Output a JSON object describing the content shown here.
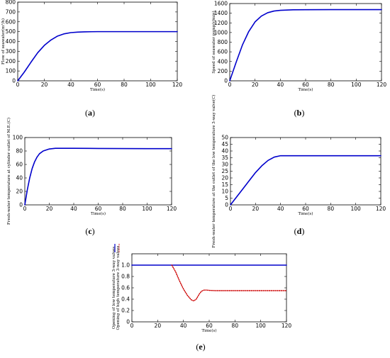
{
  "chart_data": [
    {
      "type": "line",
      "panel": "a",
      "caption": "(a)",
      "ylabel": "Flow of seawater(m³/h)",
      "xlabel": "Time(s)",
      "xlim": [
        0,
        120
      ],
      "ylim": [
        0,
        800
      ],
      "xticks": [
        0,
        20,
        40,
        60,
        80,
        100,
        120
      ],
      "yticks": [
        0,
        100,
        200,
        300,
        400,
        500,
        600,
        700,
        800
      ],
      "grid": false,
      "series": [
        {
          "color": "#0000cc",
          "style": "solid",
          "x": [
            0,
            5,
            10,
            15,
            20,
            25,
            30,
            35,
            40,
            45,
            50,
            55,
            60,
            65,
            70,
            80,
            100,
            120
          ],
          "values": [
            0,
            90,
            190,
            285,
            360,
            415,
            455,
            478,
            490,
            495,
            498,
            499,
            500,
            500,
            500,
            500,
            500,
            500
          ]
        }
      ]
    },
    {
      "type": "line",
      "panel": "b",
      "caption": "(b)",
      "ylabel": "Speed of seawater pump(r/min)",
      "xlabel": "Time(s)",
      "xlim": [
        0,
        120
      ],
      "ylim": [
        0,
        1600
      ],
      "xticks": [
        0,
        20,
        40,
        60,
        80,
        100,
        120
      ],
      "yticks": [
        0,
        200,
        400,
        600,
        800,
        1000,
        1200,
        1400,
        1600
      ],
      "grid": false,
      "series": [
        {
          "color": "#0000cc",
          "style": "solid",
          "x": [
            0,
            5,
            10,
            15,
            20,
            25,
            30,
            35,
            40,
            50,
            60,
            80,
            100,
            120
          ],
          "values": [
            0,
            380,
            740,
            1020,
            1220,
            1340,
            1410,
            1445,
            1460,
            1470,
            1472,
            1475,
            1475,
            1475
          ]
        }
      ]
    },
    {
      "type": "line",
      "panel": "c",
      "caption": "(c)",
      "ylabel": "Fresh-water temperature at cylinder outlet of M.E.(C)",
      "xlabel": "Time(s)",
      "xlim": [
        0,
        120
      ],
      "ylim": [
        0,
        100
      ],
      "xticks": [
        0,
        20,
        40,
        60,
        80,
        100,
        120
      ],
      "yticks": [
        0,
        20,
        40,
        60,
        80,
        100
      ],
      "grid": false,
      "series": [
        {
          "color": "#0000cc",
          "style": "solid",
          "x": [
            0,
            2,
            4,
            6,
            8,
            10,
            12,
            15,
            20,
            25,
            30,
            35,
            40,
            60,
            80,
            100,
            120
          ],
          "values": [
            0,
            22,
            40,
            54,
            64,
            71,
            76,
            80,
            83,
            84,
            84,
            84,
            84,
            83.8,
            83.6,
            83.5,
            83.5
          ]
        }
      ]
    },
    {
      "type": "line",
      "panel": "d",
      "caption": "(d)",
      "ylabel": "Fresh-water temperature at the outlet of the low temperature 3-way valve(C)",
      "xlabel": "Time(s)",
      "xlim": [
        0,
        120
      ],
      "ylim": [
        0,
        50
      ],
      "xticks": [
        0,
        20,
        40,
        60,
        80,
        100,
        120
      ],
      "yticks": [
        0,
        5,
        10,
        15,
        20,
        25,
        30,
        35,
        40,
        45,
        50
      ],
      "grid": false,
      "series": [
        {
          "color": "#0000cc",
          "style": "solid",
          "x": [
            0,
            5,
            10,
            15,
            20,
            25,
            30,
            35,
            40,
            45,
            60,
            80,
            100,
            120
          ],
          "values": [
            0,
            6,
            12,
            18,
            24,
            29,
            33,
            35.5,
            36.5,
            36.5,
            36.5,
            36.5,
            36.5,
            36.5
          ]
        }
      ]
    },
    {
      "type": "line",
      "panel": "e",
      "caption": "(e)",
      "ylabel": "Opening of low temperature 3-way valves",
      "ylabel2": "Opening of high temperature 3-way valves",
      "xlabel": "Time(s)",
      "xlim": [
        0,
        120
      ],
      "ylim": [
        0,
        1.2
      ],
      "xticks": [
        0,
        20,
        40,
        60,
        80,
        100,
        120
      ],
      "yticks": [
        0,
        0.2,
        0.4,
        0.6,
        0.8,
        1.0
      ],
      "ytick_labels": [
        "0",
        "0.2",
        "0.4",
        "0.6",
        "0.8",
        "1.0"
      ],
      "grid": false,
      "series": [
        {
          "color": "#0000cc",
          "style": "solid",
          "x": [
            0,
            120
          ],
          "values": [
            1.0,
            1.0
          ]
        },
        {
          "color": "#cc0000",
          "style": "dotted",
          "x": [
            31,
            34,
            37,
            40,
            43,
            46,
            48,
            50,
            52,
            54,
            56,
            58,
            60,
            65,
            80,
            100,
            120
          ],
          "values": [
            1.0,
            0.88,
            0.72,
            0.58,
            0.47,
            0.39,
            0.37,
            0.4,
            0.48,
            0.54,
            0.56,
            0.56,
            0.555,
            0.55,
            0.55,
            0.55,
            0.55
          ]
        }
      ]
    }
  ]
}
